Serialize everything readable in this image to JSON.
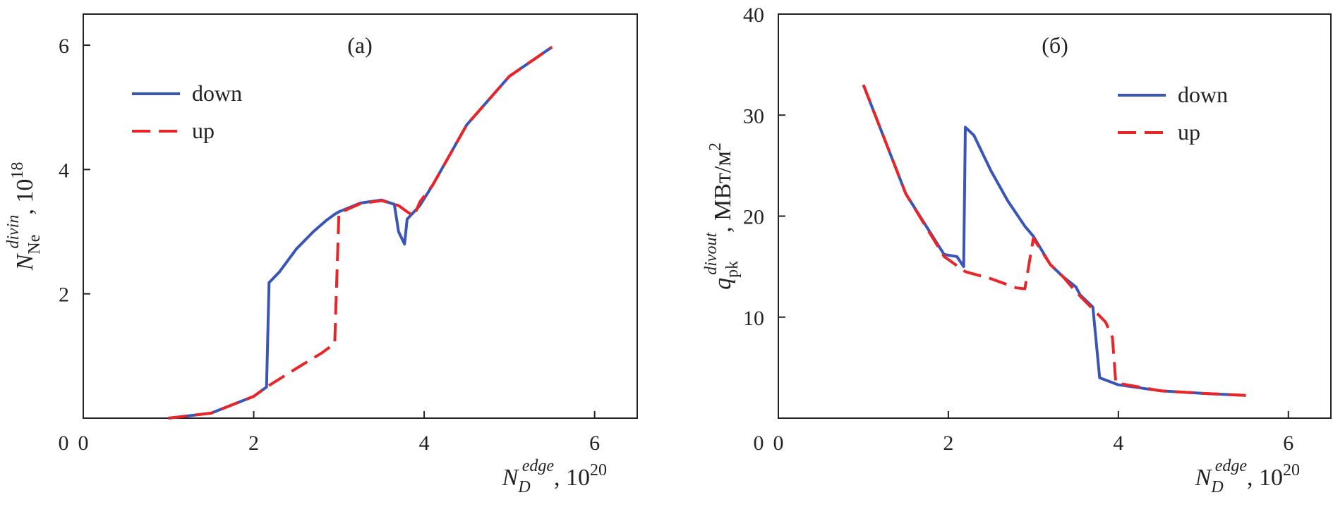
{
  "chart_data": [
    {
      "type": "line",
      "panel_label": "(a)",
      "xlabel": {
        "main": "N",
        "sub": "D",
        "sup": "edge",
        "unit": ", 10",
        "unit_sup": "20"
      },
      "ylabel": {
        "main": "N",
        "sub": "Ne",
        "sup": "divin",
        "unit": ", 10",
        "unit_sup": "18"
      },
      "xlim": [
        0,
        6.5
      ],
      "ylim": [
        0,
        6.5
      ],
      "xticks": [
        0,
        2,
        4,
        6
      ],
      "yticks": [
        2,
        4,
        6
      ],
      "x_origin_label": "0",
      "legend_position": "top-left",
      "series": [
        {
          "name": "down",
          "color": "#3a55b4",
          "style": "solid",
          "points": [
            [
              1.0,
              0.0
            ],
            [
              1.5,
              0.08
            ],
            [
              2.0,
              0.35
            ],
            [
              2.15,
              0.5
            ],
            [
              2.18,
              2.18
            ],
            [
              2.3,
              2.35
            ],
            [
              2.5,
              2.72
            ],
            [
              2.7,
              3.0
            ],
            [
              2.85,
              3.18
            ],
            [
              2.95,
              3.28
            ],
            [
              3.0,
              3.32
            ],
            [
              3.25,
              3.46
            ],
            [
              3.5,
              3.51
            ],
            [
              3.65,
              3.44
            ],
            [
              3.7,
              3.0
            ],
            [
              3.77,
              2.8
            ],
            [
              3.8,
              3.2
            ],
            [
              3.95,
              3.42
            ],
            [
              4.1,
              3.75
            ],
            [
              4.5,
              4.72
            ],
            [
              5.0,
              5.5
            ],
            [
              5.5,
              5.97
            ]
          ]
        },
        {
          "name": "up",
          "color": "#e8262a",
          "style": "dashed",
          "points": [
            [
              1.0,
              0.0
            ],
            [
              1.5,
              0.08
            ],
            [
              2.0,
              0.35
            ],
            [
              2.15,
              0.5
            ],
            [
              2.5,
              0.8
            ],
            [
              2.8,
              1.05
            ],
            [
              2.95,
              1.2
            ],
            [
              3.0,
              3.3
            ],
            [
              3.25,
              3.45
            ],
            [
              3.5,
              3.5
            ],
            [
              3.7,
              3.42
            ],
            [
              3.8,
              3.32
            ],
            [
              3.88,
              3.25
            ],
            [
              3.95,
              3.48
            ],
            [
              4.1,
              3.75
            ],
            [
              4.5,
              4.72
            ],
            [
              5.0,
              5.5
            ],
            [
              5.5,
              5.97
            ]
          ]
        }
      ]
    },
    {
      "type": "line",
      "panel_label": "(б)",
      "xlabel": {
        "main": "N",
        "sub": "D",
        "sup": "edge",
        "unit": ", 10",
        "unit_sup": "20"
      },
      "ylabel": {
        "main": "q",
        "sub": "pk",
        "sup": "divout",
        "unit": ", МВт/м",
        "unit_sup": "2"
      },
      "xlim": [
        0,
        6.5
      ],
      "ylim": [
        0,
        40
      ],
      "xticks": [
        0,
        2,
        4,
        6
      ],
      "yticks": [
        10,
        20,
        30,
        40
      ],
      "x_origin_label": "0",
      "legend_position": "top-right",
      "series": [
        {
          "name": "down",
          "color": "#3a55b4",
          "style": "solid",
          "points": [
            [
              1.0,
              33.0
            ],
            [
              1.5,
              22.2
            ],
            [
              1.95,
              16.2
            ],
            [
              2.1,
              16.0
            ],
            [
              2.18,
              15.0
            ],
            [
              2.2,
              28.8
            ],
            [
              2.3,
              28.0
            ],
            [
              2.5,
              24.5
            ],
            [
              2.7,
              21.5
            ],
            [
              2.9,
              19.0
            ],
            [
              3.0,
              18.0
            ],
            [
              3.2,
              15.2
            ],
            [
              3.35,
              14.0
            ],
            [
              3.5,
              13.0
            ],
            [
              3.55,
              12.2
            ],
            [
              3.7,
              11.0
            ],
            [
              3.78,
              4.0
            ],
            [
              4.0,
              3.3
            ],
            [
              4.5,
              2.7
            ],
            [
              5.0,
              2.45
            ],
            [
              5.5,
              2.25
            ]
          ]
        },
        {
          "name": "up",
          "color": "#e8262a",
          "style": "dashed",
          "points": [
            [
              1.0,
              33.0
            ],
            [
              1.5,
              22.2
            ],
            [
              1.95,
              16.0
            ],
            [
              2.2,
              14.5
            ],
            [
              2.5,
              13.8
            ],
            [
              2.8,
              12.9
            ],
            [
              2.9,
              12.8
            ],
            [
              3.0,
              17.8
            ],
            [
              3.2,
              15.2
            ],
            [
              3.35,
              14.0
            ],
            [
              3.5,
              12.5
            ],
            [
              3.7,
              10.8
            ],
            [
              3.85,
              9.5
            ],
            [
              3.93,
              8.0
            ],
            [
              3.97,
              3.5
            ],
            [
              4.5,
              2.7
            ],
            [
              5.0,
              2.45
            ],
            [
              5.5,
              2.25
            ]
          ]
        }
      ]
    }
  ]
}
